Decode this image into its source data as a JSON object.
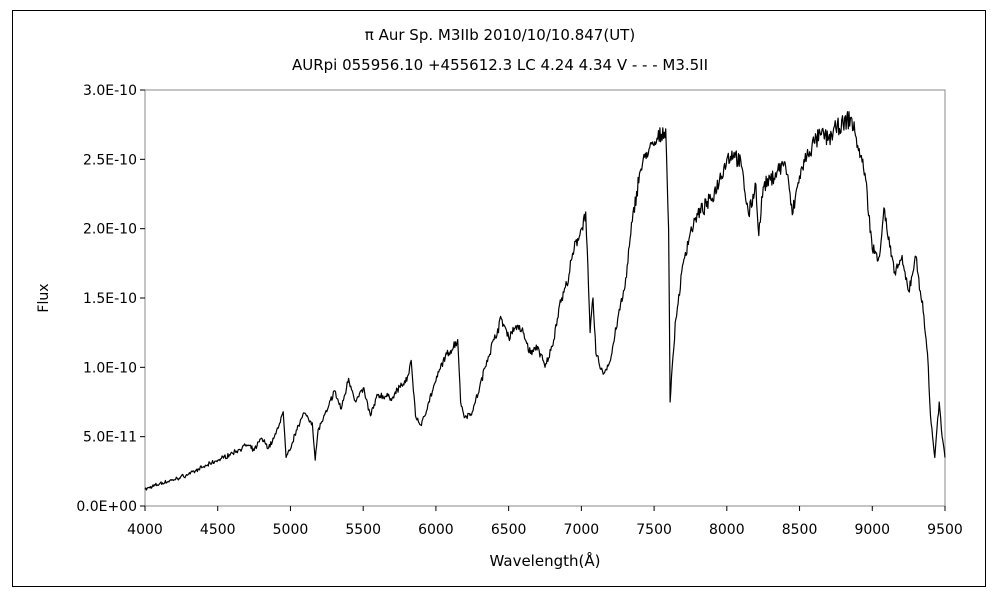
{
  "chart_data": {
    "type": "line",
    "title": "π Aur   Sp. M3IIb   2010/10/10.847(UT)",
    "subtitle": "AURpi 055956.10 +455612.3 LC 4.24 4.34 V - - - M3.5II",
    "xlabel": "Wavelength(Å)",
    "ylabel": "Flux",
    "xlim": [
      4000,
      9500
    ],
    "ylim": [
      0,
      3e-10
    ],
    "x_ticks": [
      4000,
      4500,
      5000,
      5500,
      6000,
      6500,
      7000,
      7500,
      8000,
      8500,
      9000,
      9500
    ],
    "x_tick_labels": [
      "4000",
      "4500",
      "5000",
      "5500",
      "6000",
      "6500",
      "7000",
      "7500",
      "8000",
      "8500",
      "9000",
      "9500"
    ],
    "y_ticks": [
      0,
      5e-11,
      1e-10,
      1.5e-10,
      2e-10,
      2.5e-10,
      3e-10
    ],
    "y_tick_labels": [
      "0.0E+00",
      "5.0E-11",
      "1.0E-10",
      "1.5E-10",
      "2.0E-10",
      "2.5E-10",
      "3.0E-10"
    ],
    "grid": false,
    "line_color": "#000000",
    "series": [
      {
        "x": [
          4000,
          4100,
          4200,
          4300,
          4400,
          4500,
          4600,
          4700,
          4750,
          4800,
          4850,
          4900,
          4950,
          4970,
          5000,
          5050,
          5100,
          5150,
          5170,
          5190,
          5250,
          5300,
          5350,
          5400,
          5450,
          5500,
          5550,
          5600,
          5700,
          5750,
          5800,
          5830,
          5860,
          5900,
          5950,
          6000,
          6050,
          6100,
          6150,
          6170,
          6200,
          6250,
          6300,
          6350,
          6400,
          6450,
          6500,
          6550,
          6600,
          6650,
          6700,
          6750,
          6800,
          6850,
          6900,
          6950,
          7000,
          7030,
          7060,
          7080,
          7100,
          7150,
          7200,
          7250,
          7300,
          7350,
          7400,
          7450,
          7500,
          7550,
          7580,
          7600,
          7610,
          7630,
          7650,
          7700,
          7750,
          7800,
          7900,
          8000,
          8050,
          8100,
          8150,
          8200,
          8220,
          8250,
          8300,
          8350,
          8400,
          8430,
          8450,
          8500,
          8550,
          8600,
          8650,
          8700,
          8750,
          8800,
          8850,
          8880,
          8900,
          8950,
          9000,
          9050,
          9080,
          9100,
          9150,
          9200,
          9250,
          9300,
          9350,
          9380,
          9400,
          9430,
          9460,
          9480,
          9500
        ],
        "y": [
          1.2e-11,
          1.6e-11,
          1.9e-11,
          2.3e-11,
          2.8e-11,
          3.3e-11,
          3.8e-11,
          4.4e-11,
          4e-11,
          4.9e-11,
          4.2e-11,
          5.2e-11,
          6.8e-11,
          3.5e-11,
          4.1e-11,
          5.8e-11,
          6.7e-11,
          6e-11,
          3.3e-11,
          5.5e-11,
          6.8e-11,
          8.3e-11,
          7e-11,
          9.2e-11,
          7.5e-11,
          8.5e-11,
          6.5e-11,
          8e-11,
          7.8e-11,
          8.6e-11,
          9e-11,
          1.05e-10,
          6.5e-11,
          5.8e-11,
          7.5e-11,
          9e-11,
          1.05e-10,
          1.12e-10,
          1.2e-10,
          7.5e-11,
          6.4e-11,
          6.8e-11,
          8.5e-11,
          1.05e-10,
          1.2e-10,
          1.35e-10,
          1.22e-10,
          1.3e-10,
          1.25e-10,
          1.1e-10,
          1.15e-10,
          1e-10,
          1.15e-10,
          1.45e-10,
          1.6e-10,
          1.85e-10,
          2e-10,
          2.12e-10,
          1.25e-10,
          1.5e-10,
          1.1e-10,
          9.5e-11,
          1.05e-10,
          1.35e-10,
          1.58e-10,
          2.05e-10,
          2.4e-10,
          2.55e-10,
          2.6e-10,
          2.68e-10,
          2.72e-10,
          2e-10,
          7.5e-11,
          1.08e-10,
          1.35e-10,
          1.75e-10,
          1.98e-10,
          2.1e-10,
          2.22e-10,
          2.5e-10,
          2.55e-10,
          2.45e-10,
          2.1e-10,
          2.32e-10,
          1.95e-10,
          2.3e-10,
          2.35e-10,
          2.42e-10,
          2.48e-10,
          2.28e-10,
          2.1e-10,
          2.38e-10,
          2.52e-10,
          2.62e-10,
          2.68e-10,
          2.65e-10,
          2.72e-10,
          2.75e-10,
          2.8e-10,
          2.7e-10,
          2.6e-10,
          2.4e-10,
          1.85e-10,
          1.8e-10,
          2.15e-10,
          2e-10,
          1.68e-10,
          1.78e-10,
          1.55e-10,
          1.8e-10,
          1.4e-10,
          1.1e-10,
          6.5e-11,
          3.5e-11,
          7.5e-11,
          5e-11,
          3.5e-11
        ]
      }
    ]
  }
}
